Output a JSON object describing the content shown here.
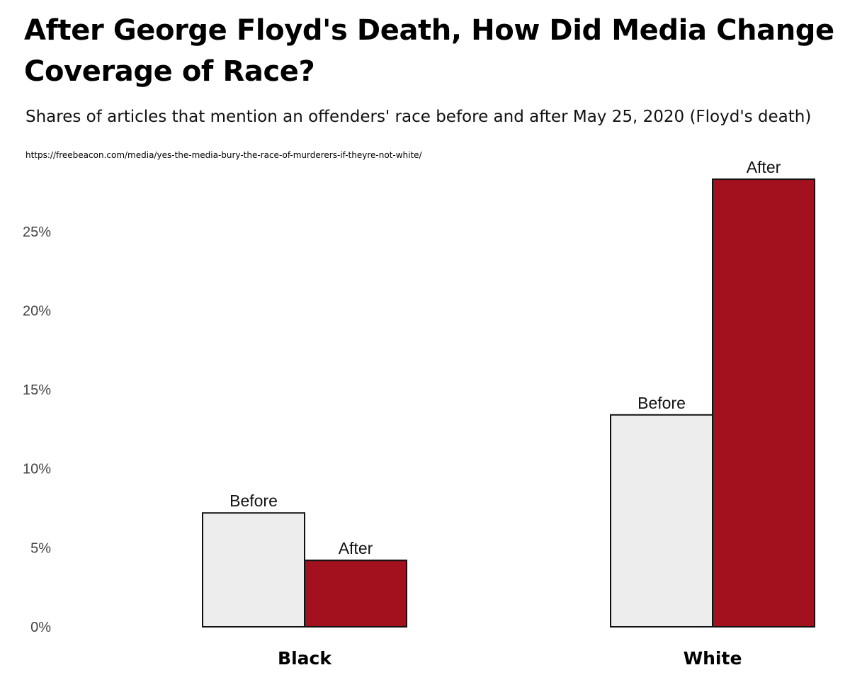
{
  "header": {
    "title": "After George Floyd's Death, How Did Media Change Coverage of Race?",
    "subtitle": "Shares of articles that mention an offenders' race before and after May 25, 2020 (Floyd's death)",
    "source_url": "https://freebeacon.com/media/yes-the-media-bury-the-race-of-murderers-if-theyre-not-white/"
  },
  "colors": {
    "before": "#eeedee",
    "after": "#a3111f",
    "bar_outline": "#111111",
    "tick_text": "#444444"
  },
  "chart_data": {
    "type": "bar",
    "categories": [
      "Black",
      "White"
    ],
    "series": [
      {
        "name": "Before",
        "values": [
          7.2,
          13.4
        ]
      },
      {
        "name": "After",
        "values": [
          4.2,
          28.3
        ]
      }
    ],
    "ylim": [
      0,
      28.3
    ],
    "yticks": [
      0,
      5,
      10,
      15,
      20,
      25
    ],
    "ytick_labels": [
      "0%",
      "5%",
      "10%",
      "15%",
      "20%",
      "25%"
    ],
    "xlabel": "",
    "ylabel": "",
    "grid": false,
    "legend": "none (bars labeled directly)"
  }
}
